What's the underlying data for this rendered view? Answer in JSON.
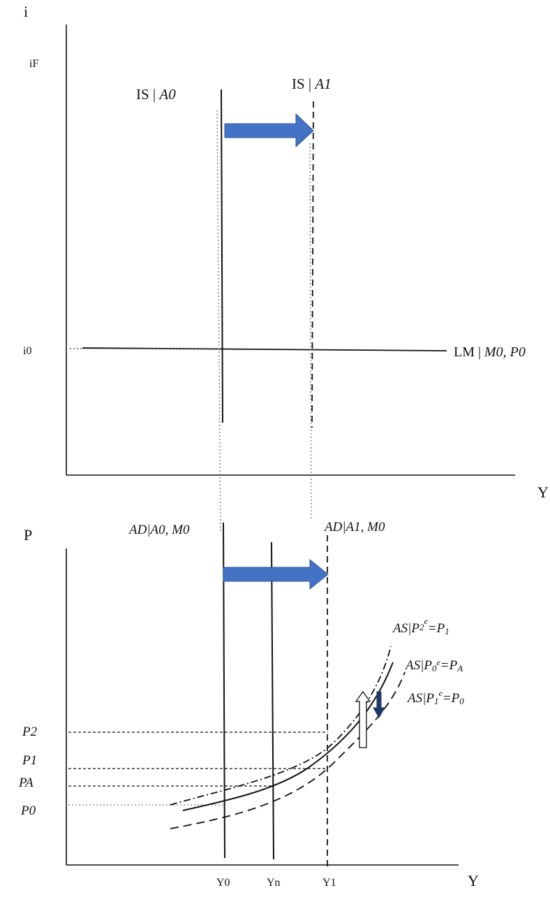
{
  "top_panel": {
    "y_axis_label": "i",
    "i_f_label": "iF",
    "i_0_label": "i0",
    "x_axis_label": "Y",
    "is0_label_main": "IS | ",
    "is0_label_it": "A0",
    "is1_label_main": "IS | ",
    "is1_label_it": "A1",
    "lm_label_main": "LM | ",
    "lm_label_it": "M0, P0"
  },
  "bottom_panel": {
    "y_axis_label": "P",
    "x_axis_label": "Y",
    "ad0_label": "AD|A0, M0",
    "ad1_label": "AD|A1, M0",
    "as_p2e_label": "AS|P2e=P1",
    "as_p0e_label": "AS|P0e=PA",
    "as_p1e_label": "AS|P1e=P0",
    "price_labels": {
      "p2": "P2",
      "p1": "P1",
      "pa": "PA",
      "p0": "P0"
    },
    "output_labels": {
      "y0": "Y0",
      "yn": "Yn",
      "y1": "Y1"
    }
  },
  "colors": {
    "arrow_blue": "#4472C4",
    "arrow_dark": "#203864",
    "line": "#111111",
    "dotted": "#555555"
  }
}
